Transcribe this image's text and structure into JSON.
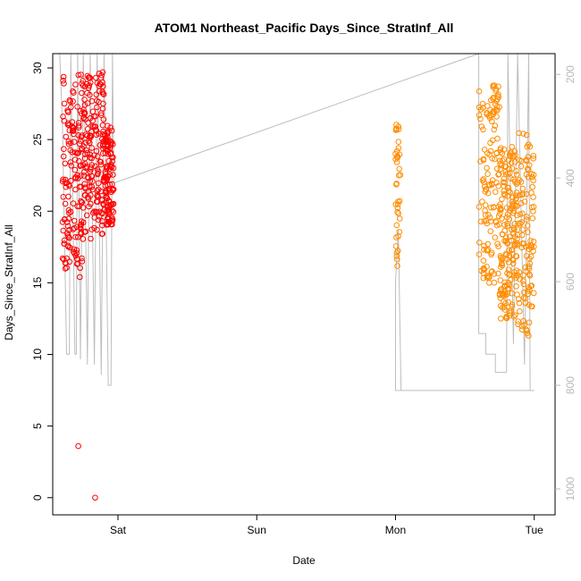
{
  "chart_data": {
    "type": "scatter",
    "title": "ATOM1 Northeast_Pacific Days_Since_StratInf_All",
    "xlabel": "Date",
    "ylabel": "Days_Since_StratInf_All",
    "x_ticks": [
      "Sat",
      "Sun",
      "Mon",
      "Tue"
    ],
    "x_tick_days": [
      1,
      2,
      3,
      4
    ],
    "xlim": [
      0.53,
      4.15
    ],
    "ylim": [
      -1.2,
      31.0
    ],
    "y_ticks": [
      0,
      5,
      10,
      15,
      20,
      25,
      30
    ],
    "y2lim": [
      1050,
      160
    ],
    "y2_ticks": [
      200,
      400,
      600,
      800,
      1000
    ],
    "grid": false,
    "legend": "none",
    "colors": {
      "series_1": "#ff0000",
      "series_2": "#ff8c00",
      "pressure_line": "#bebebe",
      "right_axis": "#b8b8b8"
    },
    "series": [
      {
        "color": "#ff0000",
        "x_range": [
          0.6,
          0.97
        ],
        "y_clusters": [
          {
            "x_range": [
              0.6,
              0.75
            ],
            "y_range": [
              16,
              29.8
            ],
            "n": 150
          },
          {
            "x_range": [
              0.75,
              0.9
            ],
            "y_range": [
              18,
              29.8
            ],
            "n": 170
          },
          {
            "x_range": [
              0.9,
              0.97
            ],
            "y_range": [
              19,
              26
            ],
            "n": 110
          }
        ],
        "outliers": [
          [
            0.714,
            3.6
          ],
          [
            0.835,
            0.0
          ],
          [
            0.725,
            15.4
          ],
          [
            0.64,
            17.6
          ],
          [
            0.62,
            16.0
          ],
          [
            0.62,
            16.4
          ]
        ]
      },
      {
        "color": "#ff8c00",
        "x_range": [
          3.0,
          4.0
        ],
        "y_clusters": [
          {
            "x_range": [
              3.0,
              3.035
            ],
            "y_range": [
              16,
              26.2
            ],
            "n": 40
          },
          {
            "x_range": [
              3.6,
              3.75
            ],
            "y_range": [
              15,
              28.8
            ],
            "n": 130
          },
          {
            "x_range": [
              3.75,
              3.88
            ],
            "y_range": [
              12.5,
              24.5
            ],
            "n": 180
          },
          {
            "x_range": [
              3.88,
              4.0
            ],
            "y_range": [
              11,
              25.5
            ],
            "n": 110
          }
        ]
      }
    ],
    "pressure_line": {
      "y2_axis": true,
      "points": [
        [
          0.58,
          160
        ],
        [
          0.6,
          300
        ],
        [
          0.63,
          740
        ],
        [
          0.65,
          740
        ],
        [
          0.66,
          160
        ],
        [
          0.69,
          740
        ],
        [
          0.7,
          740
        ],
        [
          0.71,
          160
        ],
        [
          0.73,
          750
        ],
        [
          0.75,
          160
        ],
        [
          0.78,
          760
        ],
        [
          0.8,
          160
        ],
        [
          0.83,
          760
        ],
        [
          0.85,
          160
        ],
        [
          0.88,
          780
        ],
        [
          0.9,
          160
        ],
        [
          0.93,
          800
        ],
        [
          0.95,
          800
        ],
        [
          0.96,
          160
        ],
        [
          0.97,
          410
        ],
        [
          3.6,
          160
        ],
        [
          3.6,
          700
        ],
        [
          3.65,
          700
        ],
        [
          3.65,
          740
        ],
        [
          3.72,
          740
        ],
        [
          3.72,
          775
        ],
        [
          3.8,
          775
        ],
        [
          3.81,
          160
        ],
        [
          3.85,
          720
        ],
        [
          3.88,
          160
        ],
        [
          3.93,
          760
        ],
        [
          3.96,
          160
        ],
        [
          3.97,
          810
        ],
        [
          4.0,
          810
        ],
        [
          4.0,
          810
        ],
        [
          3.0,
          810
        ],
        [
          3.0,
          600
        ],
        [
          3.02,
          500
        ],
        [
          3.04,
          810
        ]
      ]
    }
  }
}
